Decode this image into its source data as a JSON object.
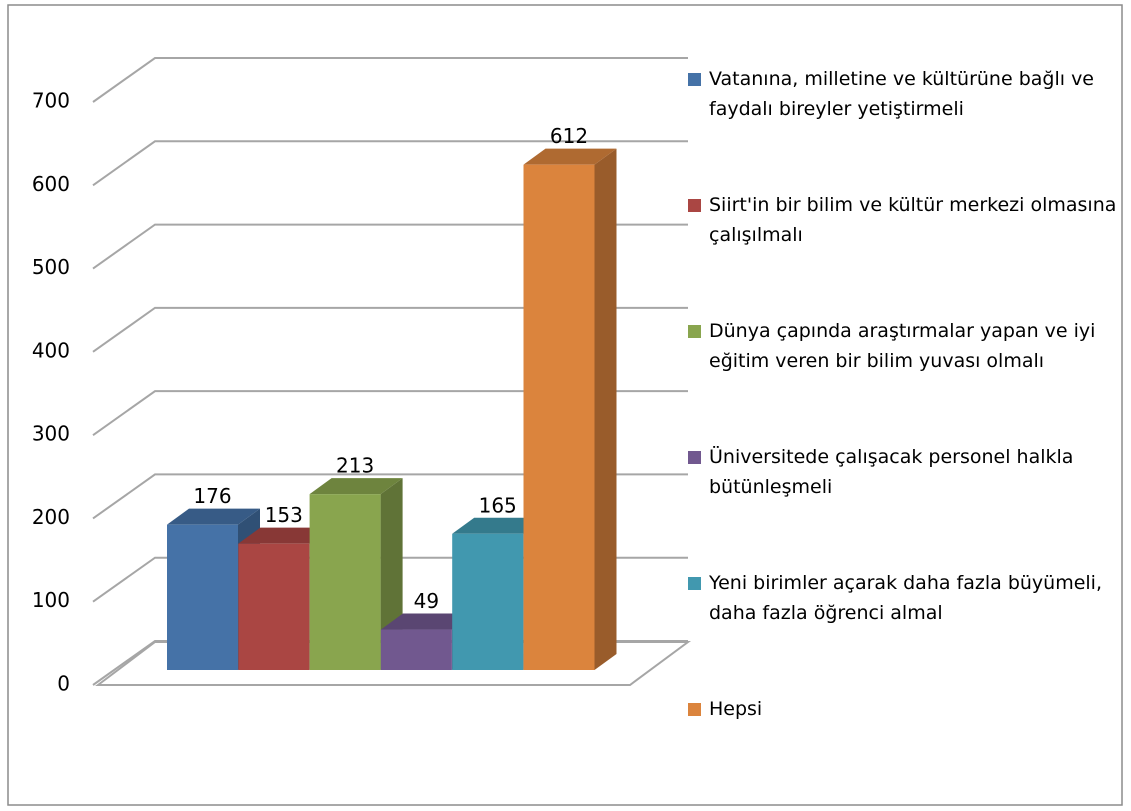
{
  "chart_data": {
    "type": "bar3d",
    "series": [
      {
        "name": "Vatanına, milletine ve kültürüne bağlı ve faydalı bireyler yetiştirmeli",
        "color": "#4572a7",
        "values": [
          176
        ]
      },
      {
        "name": "Siirt'in bir bilim ve kültür merkezi olmasına çalışılmalı",
        "color": "#aa4643",
        "values": [
          153
        ]
      },
      {
        "name": "Dünya çapında araştırmalar yapan ve iyi eğitim veren bir bilim yuvası olmalı",
        "color": "#89a54e",
        "values": [
          213
        ]
      },
      {
        "name": "Üniversitede çalışacak personel halkla bütünleşmeli",
        "color": "#71588f",
        "values": [
          49
        ]
      },
      {
        "name": "Yeni birimler açarak daha fazla büyümeli, daha fazla öğrenci almal",
        "color": "#4198af",
        "values": [
          165
        ]
      },
      {
        "name": "Hepsi",
        "color": "#db843d",
        "values": [
          612
        ]
      }
    ],
    "ylim": [
      0,
      700
    ],
    "yticks": [
      0,
      100,
      200,
      300,
      400,
      500,
      600,
      700
    ],
    "grid": true,
    "legend": "right"
  }
}
